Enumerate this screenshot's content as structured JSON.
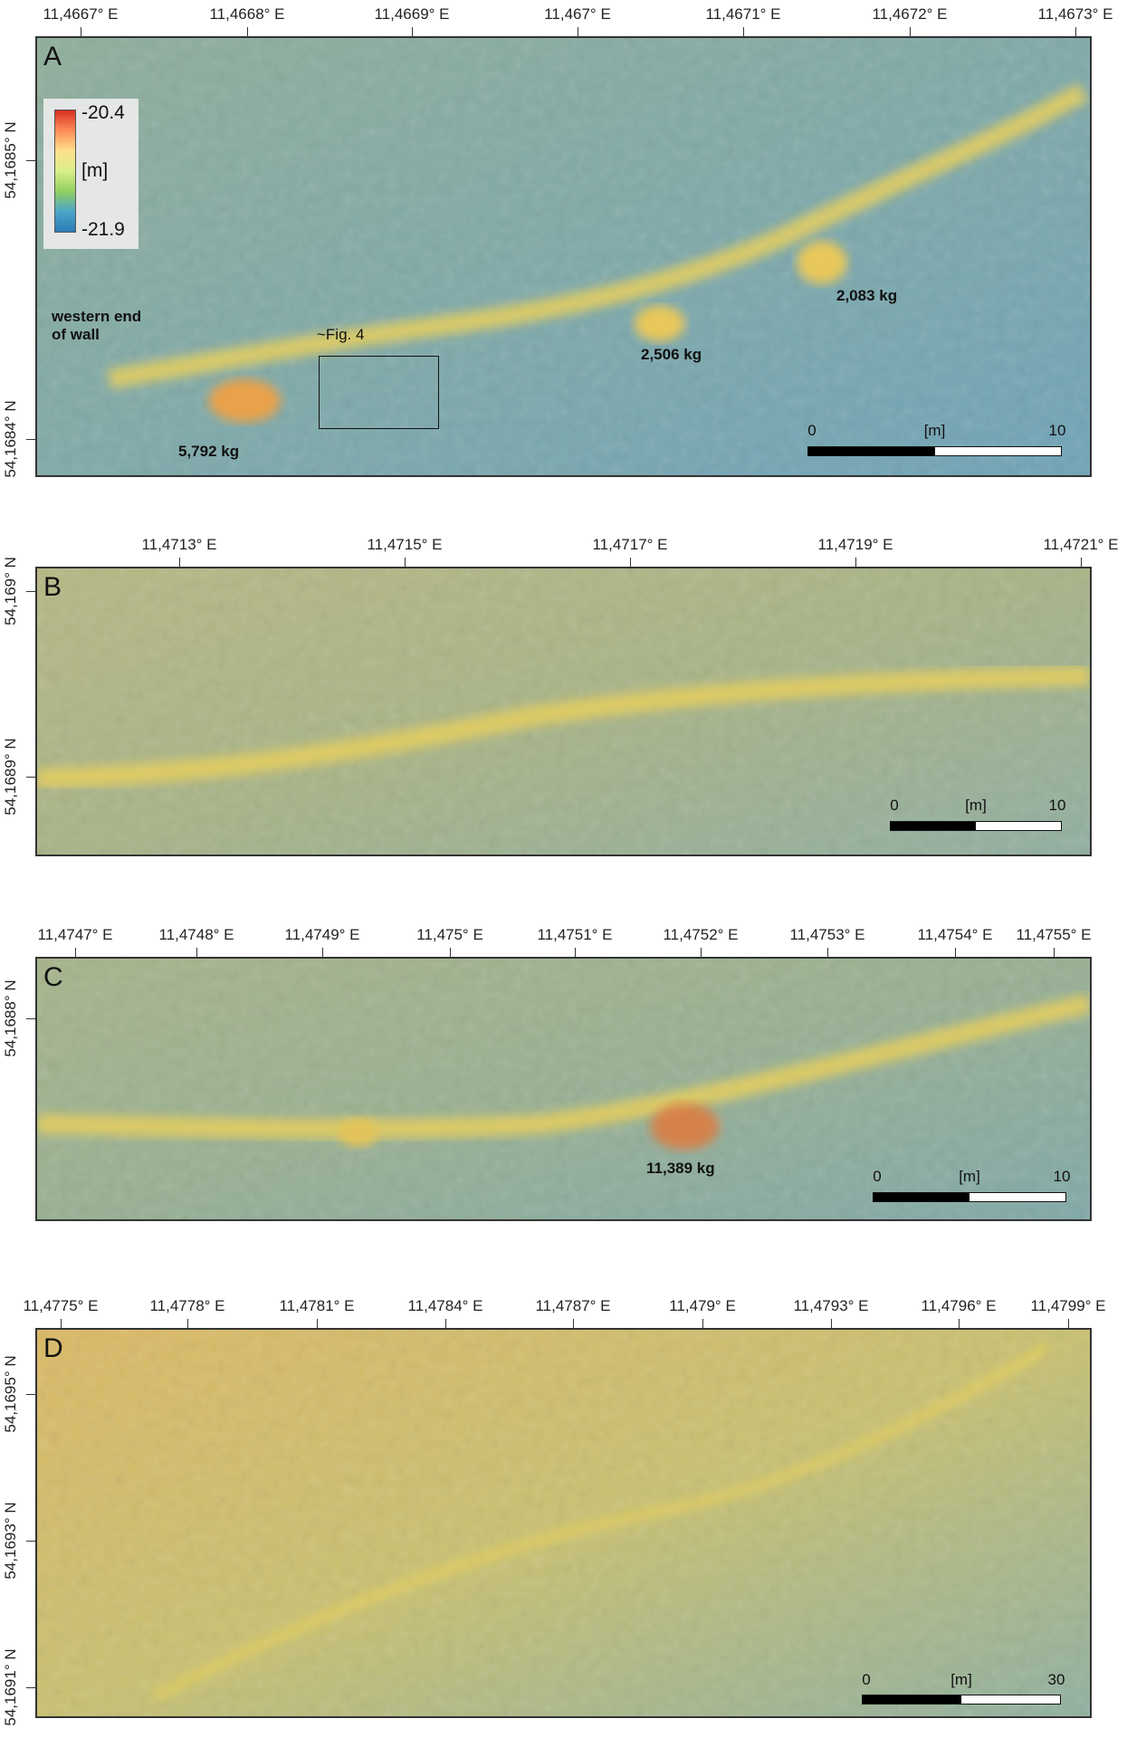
{
  "panels": [
    {
      "id": "A",
      "x_ticks": [
        "11,4667° E",
        "11,4668° E",
        "11,4669° E",
        "11,467° E",
        "11,4671° E",
        "11,4672° E",
        "11,4673° E"
      ],
      "y_ticks": [
        "54,1685° N",
        "54,1684° N"
      ],
      "legend": {
        "max": "-20.4",
        "unit": "[m]",
        "min": "-21.9"
      },
      "annotations": {
        "western_end": "western end\nof wall",
        "fig_ref": "~Fig. 4",
        "stone1": "5,792 kg",
        "stone2": "2,506 kg",
        "stone3": "2,083 kg"
      },
      "scale": {
        "start": "0",
        "unit": "[m]",
        "end": "10"
      }
    },
    {
      "id": "B",
      "x_ticks": [
        "11,4713° E",
        "11,4715° E",
        "11,4717° E",
        "11,4719° E",
        "11,4721° E"
      ],
      "y_ticks": [
        "54,169° N",
        "54,1689° N"
      ],
      "scale": {
        "start": "0",
        "unit": "[m]",
        "end": "10"
      }
    },
    {
      "id": "C",
      "x_ticks": [
        "11,4747° E",
        "11,4748° E",
        "11,4749° E",
        "11,475° E",
        "11,4751° E",
        "11,4752° E",
        "11,4753° E",
        "11,4754° E",
        "11,4755° E"
      ],
      "y_ticks": [
        "54,1688° N"
      ],
      "annotations": {
        "stone1": "11,389 kg"
      },
      "scale": {
        "start": "0",
        "unit": "[m]",
        "end": "10"
      }
    },
    {
      "id": "D",
      "x_ticks": [
        "11,4775° E",
        "11,4778° E",
        "11,4781° E",
        "11,4784° E",
        "11,4787° E",
        "11,479° E",
        "11,4793° E",
        "11,4796° E",
        "11,4799° E"
      ],
      "y_ticks": [
        "54,1695° N",
        "54,1693° N",
        "54,1691° N"
      ],
      "scale": {
        "start": "0",
        "unit": "[m]",
        "end": "30"
      }
    }
  ],
  "colors": {
    "deep": "#4f9bc0",
    "mid": "#9fb889",
    "shallow": "#e8c85a",
    "peak": "#d7301f"
  }
}
